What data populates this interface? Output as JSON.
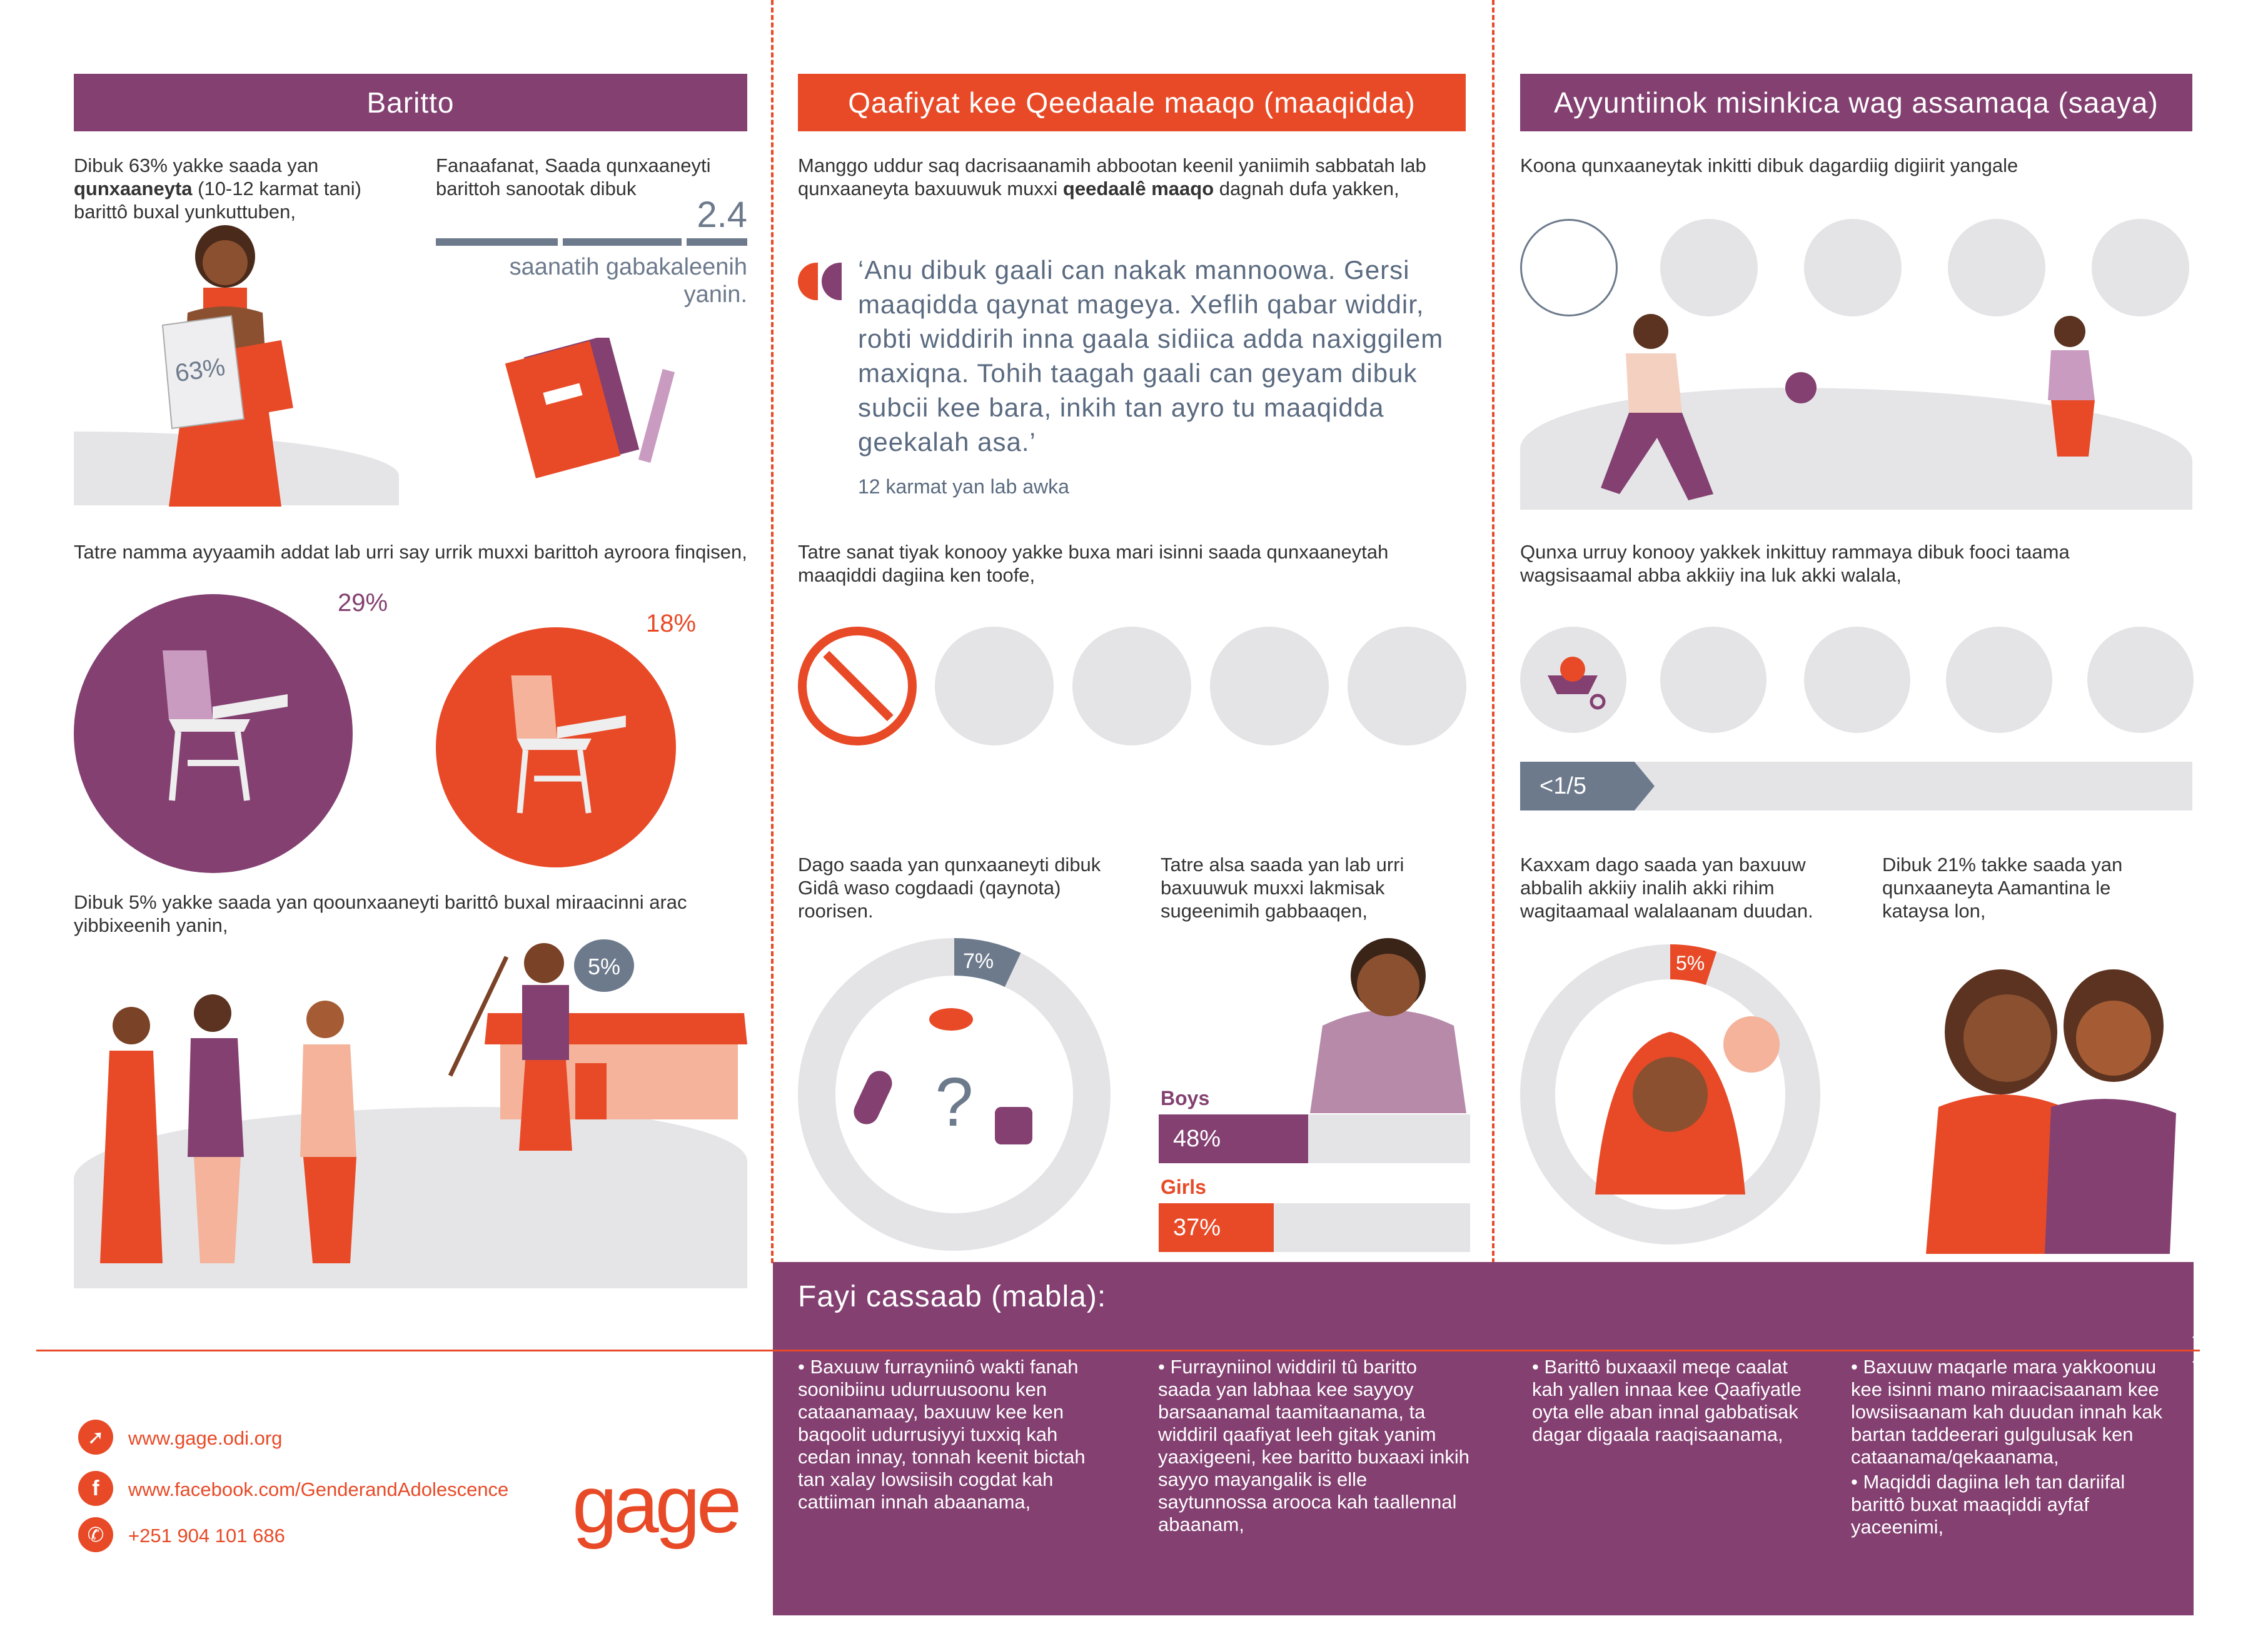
{
  "colors": {
    "purple": "#834071",
    "orange": "#e84a27",
    "grey": "#e4e4e7",
    "text": "#333333",
    "slate": "#6d7a8c"
  },
  "col1": {
    "title": "Baritto",
    "stat1": {
      "pre": "Dibuk 63% yakke  saada yan ",
      "bold": "qunxaaneyta",
      "post": " (10-12 karmat tani) barittô buxal yunkuttuben,",
      "badge": "63%"
    },
    "stat2": {
      "text": "Fanaafanat, Saada qunxaaneyti barittoh sanootak dibuk",
      "value": "2.4",
      "caption": "saanatih gabakaleenih yanin."
    },
    "stat3": {
      "text": "Tatre namma ayyaamih addat lab urri say urrik muxxi barittoh ayroora finqisen,",
      "pct_a": "29%",
      "pct_b": "18%"
    },
    "stat4": {
      "text": "Dibuk 5% yakke saada yan qoounxaaneyti barittô buxal miraacinni arac yibbixeenih yanin,",
      "badge": "5%"
    }
  },
  "col2": {
    "title": "Qaafiyat kee Qeedaale maaqo (maaqidda)",
    "intro": {
      "pre": "Manggo uddur saq dacrisaanamih abbootan keenil yaniimih sabbatah lab qunxaaneyta baxuuwuk muxxi ",
      "bold": "qeedaalê maaqo",
      "post": " dagnah dufa yakken,"
    },
    "quote": "‘Anu dibuk gaali can nakak mannoowa. Gersi maaqidda qaynat mageya. Xeflih qabar widdir, robti widdirih inna gaala sidiica adda naxiggilem maxiqna. Tohih taagah gaali can geyam dibuk subcii kee bara, inkih tan ayro tu maaqidda geekalah asa.’",
    "quote_source": "12 karmat yan lab awka",
    "diet_text": "Tatre sanat tiyak konooy yakke buxa mari isinni saada qunxaaneytah maaqiddi dagiina ken toofe,",
    "health_text": "Dago saada yan qunxaaneyti dibuk Gidâ waso cogdaadi (qaynota) roorisen.",
    "health_pct": "7%",
    "health_value": 7,
    "eat_text": "Tatre alsa saada yan lab urri baxuuwuk muxxi lakmisak sugeenimih gabbaaqen,",
    "boys_label": "Boys",
    "boys_pct": "48%",
    "boys_value": 48,
    "girls_label": "Girls",
    "girls_pct": "37%",
    "girls_value": 37
  },
  "col3": {
    "title": "Ayyuntiinok misinkica wag assamaqa (saaya)",
    "play_text": "Koona qunxaaneytak inkitti dibuk dagardiig digiirit yangale",
    "work_text": "Qunxa urruy konooy yakkek inkittuy rammaya dibuk fooci taama wagsisaamal abba akkiiy ina luk akki walala,",
    "work_fraction": "<1/5",
    "voice_text": "Kaxxam dago saada yan baxuuw abbalih akkiiy inalih akki rihim wagitaamaal walalaanam duudan.",
    "voice_pct": "5%",
    "voice_value": 5,
    "trust_text": "Dibuk 21% takke saada yan qunxaaneyta  Aamantina le kataysa lon,"
  },
  "footer": {
    "title": "Fayi cassaab (mabla):",
    "bullets": [
      "Baxuuw furrayniinô wakti fanah soonibiinu udurruusoonu ken cataanamaay, baxuuw kee ken baqoolit udurrusiyyi tuxxiq kah cedan innay,  tonnah keenit bictah tan xalay lowsiisih cogdat kah cattiiman innah abaanama,",
      "Furrayniinol widdiril tû baritto saada yan labhaa kee sayyoy barsaanamal taamitaanama, ta widdiril qaafiyat leeh gitak yanim yaaxigeeni, kee baritto buxaaxi inkih sayyo mayangalik is elle saytunnossa arooca kah taallennal abaanam,",
      "Barittô buxaaxil meqe caalat kah yallen innaa kee Qaafiyatle oyta elle aban innal gabbatisak dagar digaala raaqisaanama,",
      "Baxuuw maqarle mara yakkoonuu kee isinni mano miraacisaanam kee lowsiisaanam kah duudan innah kak bartan taddeerari gulgulusak ken cataanama/qekaanama,",
      "Maqiddi dagiina leh tan dariifal barittô buxat maaqiddi ayfaf yaceenimi,"
    ]
  },
  "contact": {
    "web": "www.gage.odi.org",
    "facebook": "www.facebook.com/GenderandAdolescence",
    "phone": "+251 904 101 686",
    "logo": "gage"
  }
}
